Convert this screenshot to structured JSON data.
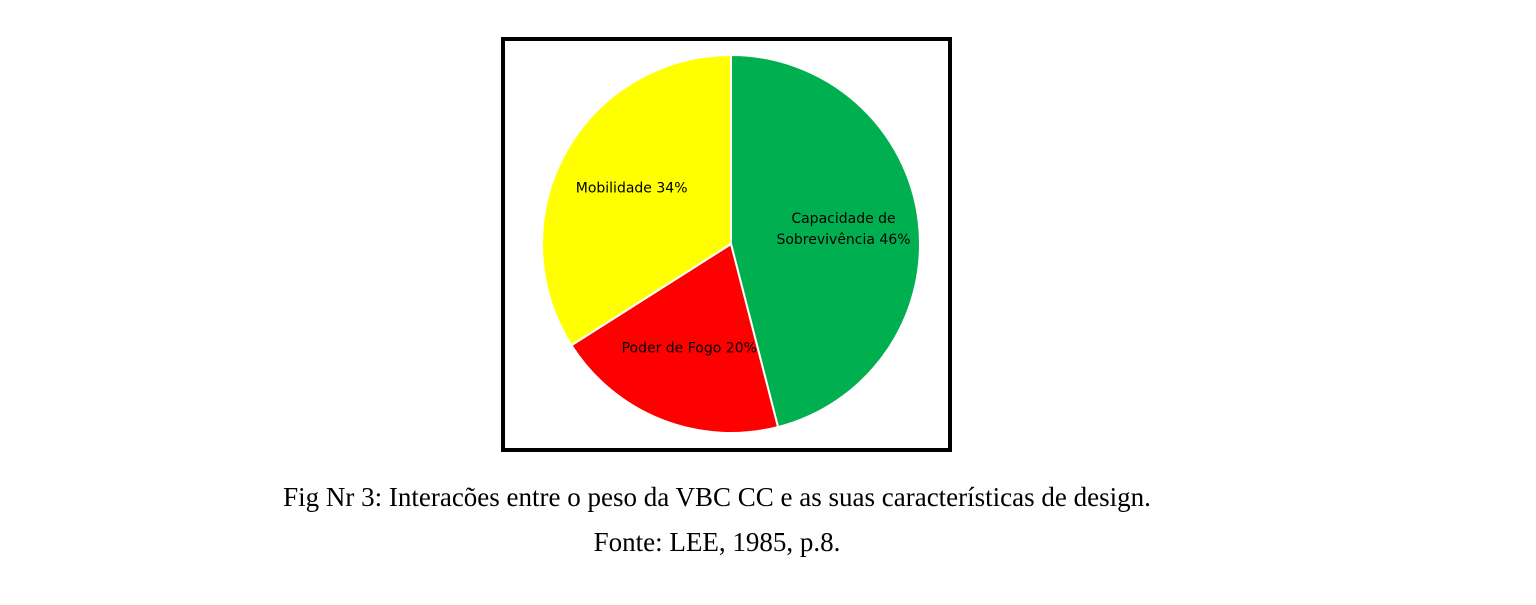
{
  "chart_data": {
    "type": "pie",
    "categories": [
      "Capacidade de Sobrevivência",
      "Poder de Fogo",
      "Mobilidade"
    ],
    "values": [
      46,
      20,
      34
    ],
    "value_labels": [
      "46%",
      "20%",
      "34%"
    ],
    "colors": [
      "#00b050",
      "#ff0000",
      "#ffff00"
    ]
  },
  "caption": {
    "title": "Fig Nr 3: Interacões entre o peso da VBC CC e as suas características de design.",
    "source": "Fonte: LEE, 1985, p.8."
  }
}
